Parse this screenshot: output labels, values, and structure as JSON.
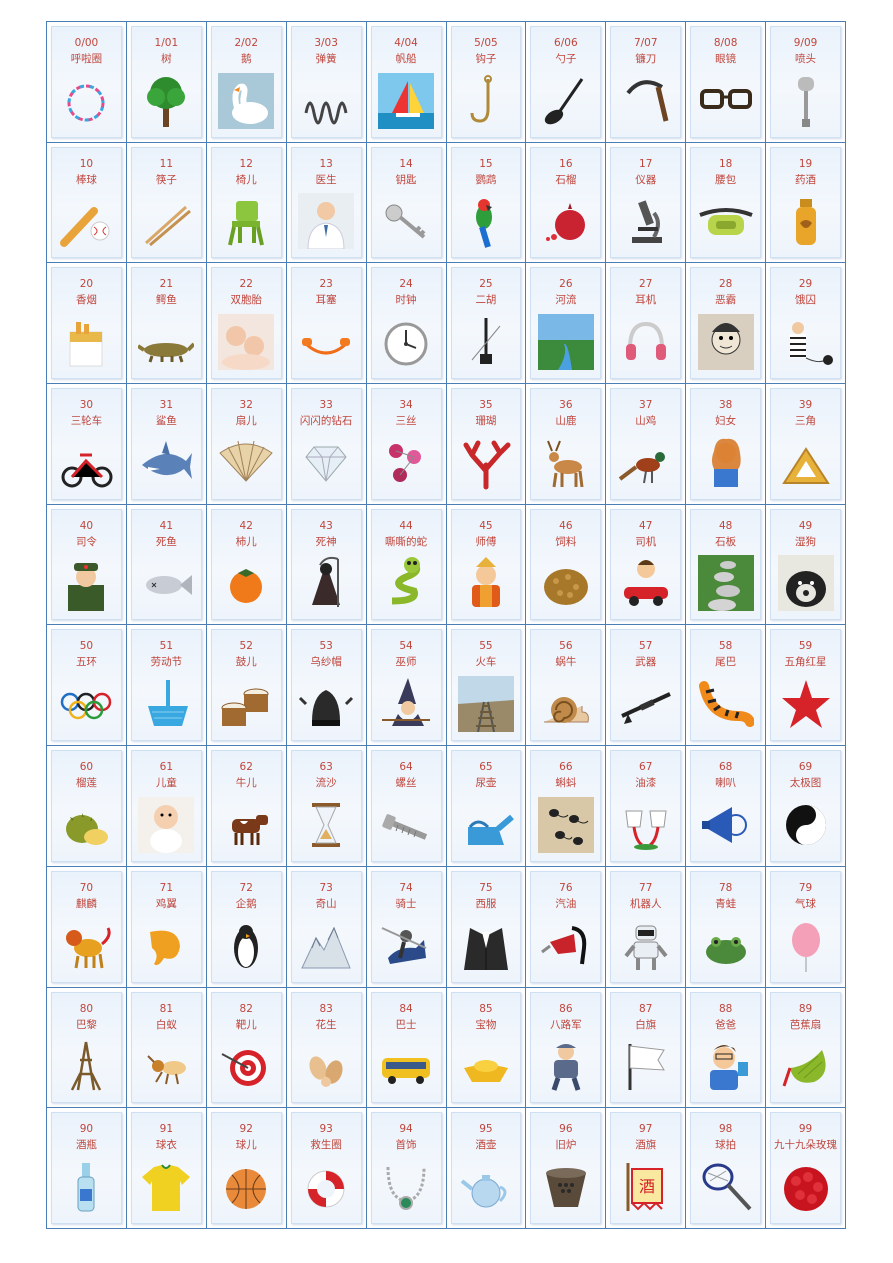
{
  "cards": [
    {
      "num": "0/00",
      "name": "呼啦圈",
      "icon": "hula-hoop-icon"
    },
    {
      "num": "1/01",
      "name": "树",
      "icon": "tree-icon"
    },
    {
      "num": "2/02",
      "name": "鹅",
      "icon": "goose-icon"
    },
    {
      "num": "3/03",
      "name": "弹簧",
      "icon": "spring-icon"
    },
    {
      "num": "4/04",
      "name": "帆船",
      "icon": "sailboat-icon"
    },
    {
      "num": "5/05",
      "name": "钩子",
      "icon": "hook-icon"
    },
    {
      "num": "6/06",
      "name": "勺子",
      "icon": "ladle-icon"
    },
    {
      "num": "7/07",
      "name": "镰刀",
      "icon": "sickle-icon"
    },
    {
      "num": "8/08",
      "name": "眼镜",
      "icon": "glasses-icon"
    },
    {
      "num": "9/09",
      "name": "喷头",
      "icon": "shower-head-icon"
    },
    {
      "num": "10",
      "name": "棒球",
      "icon": "baseball-icon"
    },
    {
      "num": "11",
      "name": "筷子",
      "icon": "chopsticks-icon"
    },
    {
      "num": "12",
      "name": "椅儿",
      "icon": "chair-icon"
    },
    {
      "num": "13",
      "name": "医生",
      "icon": "doctor-icon"
    },
    {
      "num": "14",
      "name": "钥匙",
      "icon": "key-icon"
    },
    {
      "num": "15",
      "name": "鹦鹉",
      "icon": "parrot-icon"
    },
    {
      "num": "16",
      "name": "石榴",
      "icon": "pomegranate-icon"
    },
    {
      "num": "17",
      "name": "仪器",
      "icon": "microscope-icon"
    },
    {
      "num": "18",
      "name": "腰包",
      "icon": "waist-bag-icon"
    },
    {
      "num": "19",
      "name": "药酒",
      "icon": "medicinal-wine-icon"
    },
    {
      "num": "20",
      "name": "香烟",
      "icon": "cigarette-icon"
    },
    {
      "num": "21",
      "name": "鳄鱼",
      "icon": "crocodile-icon"
    },
    {
      "num": "22",
      "name": "双胞胎",
      "icon": "twins-icon"
    },
    {
      "num": "23",
      "name": "耳塞",
      "icon": "earplugs-icon"
    },
    {
      "num": "24",
      "name": "时钟",
      "icon": "clock-icon"
    },
    {
      "num": "25",
      "name": "二胡",
      "icon": "erhu-icon"
    },
    {
      "num": "26",
      "name": "河流",
      "icon": "river-icon"
    },
    {
      "num": "27",
      "name": "耳机",
      "icon": "headphones-icon"
    },
    {
      "num": "28",
      "name": "恶霸",
      "icon": "bully-icon"
    },
    {
      "num": "29",
      "name": "饿囚",
      "icon": "prisoner-icon"
    },
    {
      "num": "30",
      "name": "三轮车",
      "icon": "tricycle-icon"
    },
    {
      "num": "31",
      "name": "鲨鱼",
      "icon": "shark-icon"
    },
    {
      "num": "32",
      "name": "扇儿",
      "icon": "fan-icon"
    },
    {
      "num": "33",
      "name": "闪闪的钻石",
      "icon": "diamond-icon"
    },
    {
      "num": "34",
      "name": "三丝",
      "icon": "silk-icon"
    },
    {
      "num": "35",
      "name": "珊瑚",
      "icon": "coral-icon"
    },
    {
      "num": "36",
      "name": "山鹿",
      "icon": "deer-icon"
    },
    {
      "num": "37",
      "name": "山鸡",
      "icon": "pheasant-icon"
    },
    {
      "num": "38",
      "name": "妇女",
      "icon": "woman-icon"
    },
    {
      "num": "39",
      "name": "三角",
      "icon": "triangle-icon"
    },
    {
      "num": "40",
      "name": "司令",
      "icon": "commander-icon"
    },
    {
      "num": "41",
      "name": "死鱼",
      "icon": "dead-fish-icon"
    },
    {
      "num": "42",
      "name": "柿儿",
      "icon": "persimmon-icon"
    },
    {
      "num": "43",
      "name": "死神",
      "icon": "reaper-icon"
    },
    {
      "num": "44",
      "name": "嘶嘶的蛇",
      "icon": "snake-icon"
    },
    {
      "num": "45",
      "name": "师傅",
      "icon": "master-icon"
    },
    {
      "num": "46",
      "name": "饲料",
      "icon": "feed-icon"
    },
    {
      "num": "47",
      "name": "司机",
      "icon": "driver-icon"
    },
    {
      "num": "48",
      "name": "石板",
      "icon": "stone-path-icon"
    },
    {
      "num": "49",
      "name": "湿狗",
      "icon": "wet-dog-icon"
    },
    {
      "num": "50",
      "name": "五环",
      "icon": "olympic-rings-icon"
    },
    {
      "num": "51",
      "name": "劳动节",
      "icon": "dustpan-icon"
    },
    {
      "num": "52",
      "name": "鼓儿",
      "icon": "drum-icon"
    },
    {
      "num": "53",
      "name": "乌纱帽",
      "icon": "official-hat-icon"
    },
    {
      "num": "54",
      "name": "巫师",
      "icon": "wizard-icon"
    },
    {
      "num": "55",
      "name": "火车",
      "icon": "railway-icon"
    },
    {
      "num": "56",
      "name": "蜗牛",
      "icon": "snail-icon"
    },
    {
      "num": "57",
      "name": "武器",
      "icon": "rifle-icon"
    },
    {
      "num": "58",
      "name": "尾巴",
      "icon": "tiger-tail-icon"
    },
    {
      "num": "59",
      "name": "五角红星",
      "icon": "red-star-icon"
    },
    {
      "num": "60",
      "name": "榴莲",
      "icon": "durian-icon"
    },
    {
      "num": "61",
      "name": "儿童",
      "icon": "child-icon"
    },
    {
      "num": "62",
      "name": "牛儿",
      "icon": "cow-icon"
    },
    {
      "num": "63",
      "name": "流沙",
      "icon": "hourglass-icon"
    },
    {
      "num": "64",
      "name": "螺丝",
      "icon": "screw-icon"
    },
    {
      "num": "65",
      "name": "尿壶",
      "icon": "urinal-icon"
    },
    {
      "num": "66",
      "name": "蝌蚪",
      "icon": "tadpole-icon"
    },
    {
      "num": "67",
      "name": "油漆",
      "icon": "paint-icon"
    },
    {
      "num": "68",
      "name": "喇叭",
      "icon": "megaphone-icon"
    },
    {
      "num": "69",
      "name": "太极图",
      "icon": "yin-yang-icon"
    },
    {
      "num": "70",
      "name": "麒麟",
      "icon": "qilin-icon"
    },
    {
      "num": "71",
      "name": "鸡翼",
      "icon": "chicken-wing-icon"
    },
    {
      "num": "72",
      "name": "企鹅",
      "icon": "penguin-icon"
    },
    {
      "num": "73",
      "name": "奇山",
      "icon": "mountain-icon"
    },
    {
      "num": "74",
      "name": "骑士",
      "icon": "knight-icon"
    },
    {
      "num": "75",
      "name": "西服",
      "icon": "suit-icon"
    },
    {
      "num": "76",
      "name": "汽油",
      "icon": "fuel-nozzle-icon"
    },
    {
      "num": "77",
      "name": "机器人",
      "icon": "robot-icon"
    },
    {
      "num": "78",
      "name": "青蛙",
      "icon": "frog-icon"
    },
    {
      "num": "79",
      "name": "气球",
      "icon": "balloon-icon"
    },
    {
      "num": "80",
      "name": "巴黎",
      "icon": "eiffel-tower-icon"
    },
    {
      "num": "81",
      "name": "白蚁",
      "icon": "termite-icon"
    },
    {
      "num": "82",
      "name": "靶儿",
      "icon": "target-icon"
    },
    {
      "num": "83",
      "name": "花生",
      "icon": "peanut-icon"
    },
    {
      "num": "84",
      "name": "巴士",
      "icon": "bus-icon"
    },
    {
      "num": "85",
      "name": "宝物",
      "icon": "gold-ingot-icon"
    },
    {
      "num": "86",
      "name": "八路军",
      "icon": "soldier-icon"
    },
    {
      "num": "87",
      "name": "白旗",
      "icon": "white-flag-icon"
    },
    {
      "num": "88",
      "name": "爸爸",
      "icon": "father-icon"
    },
    {
      "num": "89",
      "name": "芭蕉扇",
      "icon": "palm-fan-icon"
    },
    {
      "num": "90",
      "name": "酒瓶",
      "icon": "bottle-icon"
    },
    {
      "num": "91",
      "name": "球衣",
      "icon": "jersey-icon"
    },
    {
      "num": "92",
      "name": "球儿",
      "icon": "basketball-icon"
    },
    {
      "num": "93",
      "name": "救生圈",
      "icon": "lifebuoy-icon"
    },
    {
      "num": "94",
      "name": "首饰",
      "icon": "necklace-icon"
    },
    {
      "num": "95",
      "name": "酒壶",
      "icon": "teapot-icon"
    },
    {
      "num": "96",
      "name": "旧炉",
      "icon": "old-stove-icon"
    },
    {
      "num": "97",
      "name": "酒旗",
      "icon": "wine-flag-icon"
    },
    {
      "num": "98",
      "name": "球拍",
      "icon": "racket-icon"
    },
    {
      "num": "99",
      "name": "九十九朵玫瑰",
      "icon": "roses-icon"
    }
  ],
  "wine_flag_char": "酒"
}
